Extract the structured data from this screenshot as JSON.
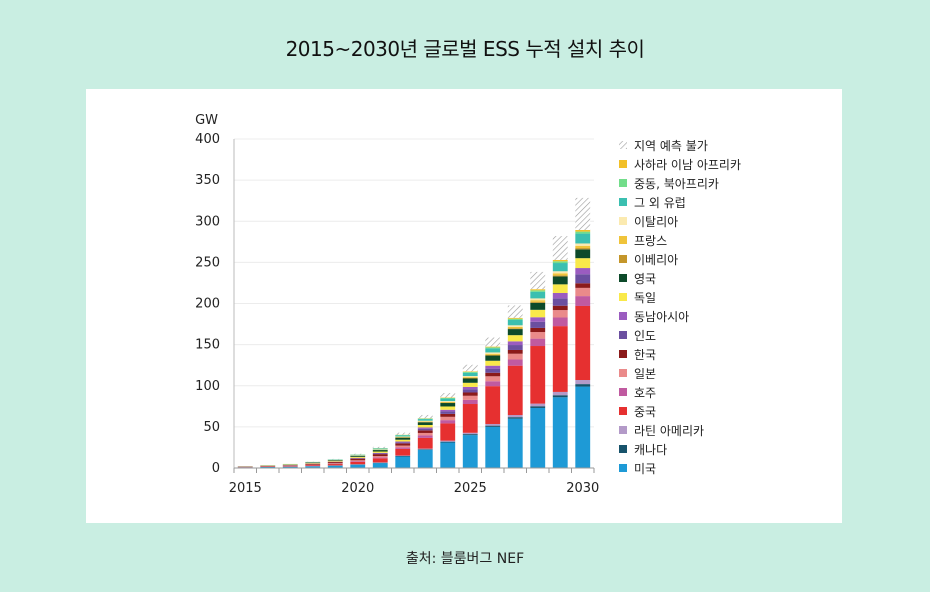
{
  "title": "2015~2030년 글로벌 ESS 누적 설치 추이",
  "source": "출처: 블룸버그 NEF",
  "chart_data": {
    "type": "bar",
    "stacked": true,
    "ylabel": "GW",
    "xlabel": "",
    "ylim": [
      0,
      400
    ],
    "yticks": [
      "0",
      "50",
      "100",
      "150",
      "200",
      "250",
      "300",
      "350",
      "400"
    ],
    "xtick_labels": [
      "2015",
      "2020",
      "2025",
      "2030"
    ],
    "grid": true,
    "legend_position": "right",
    "categories": [
      "2015",
      "2016",
      "2017",
      "2018",
      "2019",
      "2020",
      "2021",
      "2022",
      "2023",
      "2024",
      "2025",
      "2026",
      "2027",
      "2028",
      "2029",
      "2030"
    ],
    "series": [
      {
        "name": "미국",
        "color": "#1e9ad6",
        "hatched": false,
        "values": [
          0.8,
          1.2,
          1.5,
          2,
          2.8,
          4,
          6,
          14,
          22,
          31,
          40,
          50,
          60,
          73,
          86,
          99
        ]
      },
      {
        "name": "캐나다",
        "color": "#17536b",
        "hatched": false,
        "values": [
          0.1,
          0.1,
          0.1,
          0.2,
          0.2,
          0.3,
          0.4,
          0.6,
          0.8,
          1,
          1.2,
          1.5,
          1.8,
          2.1,
          2.5,
          3
        ]
      },
      {
        "name": "라틴 아메리카",
        "color": "#b39ac8",
        "hatched": false,
        "values": [
          0.1,
          0.1,
          0.1,
          0.2,
          0.2,
          0.3,
          0.4,
          0.6,
          0.8,
          1.2,
          1.6,
          2,
          2.6,
          3.2,
          4,
          5
        ]
      },
      {
        "name": "중국",
        "color": "#e63030",
        "hatched": false,
        "values": [
          0.3,
          0.4,
          0.6,
          1,
          1.6,
          3,
          5,
          8,
          13,
          21,
          35,
          46,
          60,
          70,
          80,
          90
        ]
      },
      {
        "name": "호주",
        "color": "#c05aa0",
        "hatched": false,
        "values": [
          0.1,
          0.1,
          0.2,
          0.3,
          0.4,
          0.8,
          1.2,
          2,
          3,
          4,
          5,
          6,
          7.5,
          9,
          10.5,
          12
        ]
      },
      {
        "name": "일본",
        "color": "#ea8a8a",
        "hatched": false,
        "values": [
          0.1,
          0.2,
          0.3,
          0.4,
          0.6,
          1,
          1.5,
          2,
          3,
          4,
          5,
          6,
          7,
          8,
          9,
          10
        ]
      },
      {
        "name": "한국",
        "color": "#8b1a1a",
        "hatched": false,
        "values": [
          0.2,
          0.4,
          0.6,
          1,
          1.4,
          2,
          2.4,
          2.8,
          3.2,
          3.6,
          4,
          4.3,
          4.6,
          5,
          5.3,
          5.6
        ]
      },
      {
        "name": "인도",
        "color": "#6b4fa0",
        "hatched": false,
        "values": [
          0.05,
          0.1,
          0.1,
          0.2,
          0.3,
          0.5,
          0.8,
          1.2,
          2,
          3,
          4,
          5,
          6,
          7.5,
          9,
          11
        ]
      },
      {
        "name": "동남아시아",
        "color": "#9b5cc0",
        "hatched": false,
        "values": [
          0.05,
          0.1,
          0.1,
          0.2,
          0.3,
          0.5,
          0.7,
          1,
          1.5,
          2,
          2.8,
          3.6,
          4.5,
          5.5,
          6.5,
          7.5
        ]
      },
      {
        "name": "독일",
        "color": "#f9e94a",
        "hatched": false,
        "values": [
          0.2,
          0.3,
          0.5,
          0.7,
          0.9,
          1.2,
          1.6,
          2.2,
          3,
          4,
          5,
          6,
          7.5,
          9,
          10.5,
          12
        ]
      },
      {
        "name": "영국",
        "color": "#0d4a2a",
        "hatched": false,
        "values": [
          0.1,
          0.2,
          0.3,
          0.5,
          0.8,
          1.2,
          1.8,
          2.5,
          3.3,
          4.2,
          5.2,
          6.3,
          7.4,
          8.5,
          9.6,
          10.7
        ]
      },
      {
        "name": "이베리아",
        "color": "#c4962a",
        "hatched": false,
        "values": [
          0.02,
          0.03,
          0.05,
          0.08,
          0.1,
          0.15,
          0.2,
          0.3,
          0.4,
          0.5,
          0.6,
          0.8,
          1,
          1.2,
          1.4,
          1.6
        ]
      },
      {
        "name": "프랑스",
        "color": "#f0c43a",
        "hatched": false,
        "values": [
          0.03,
          0.05,
          0.08,
          0.1,
          0.15,
          0.2,
          0.3,
          0.5,
          0.7,
          0.9,
          1.1,
          1.4,
          1.7,
          2,
          2.4,
          2.8
        ]
      },
      {
        "name": "이탈리아",
        "color": "#fbeab0",
        "hatched": false,
        "values": [
          0.05,
          0.08,
          0.1,
          0.15,
          0.2,
          0.3,
          0.4,
          0.6,
          0.8,
          1,
          1.3,
          1.6,
          1.9,
          2.2,
          2.5,
          2.8
        ]
      },
      {
        "name": "그 외 유럽",
        "color": "#3bbfb0",
        "hatched": false,
        "values": [
          0.1,
          0.15,
          0.2,
          0.3,
          0.5,
          0.7,
          1,
          1.5,
          2,
          3,
          4,
          5,
          6.5,
          8,
          10,
          12
        ]
      },
      {
        "name": "중동, 북아프리카",
        "color": "#72dd8a",
        "hatched": false,
        "values": [
          0.02,
          0.03,
          0.05,
          0.08,
          0.1,
          0.2,
          0.3,
          0.4,
          0.6,
          0.8,
          1,
          1.2,
          1.5,
          1.8,
          2.1,
          2.4
        ]
      },
      {
        "name": "사하라 이남 아프리카",
        "color": "#f2c028",
        "hatched": false,
        "values": [
          0.02,
          0.03,
          0.05,
          0.08,
          0.1,
          0.15,
          0.2,
          0.3,
          0.4,
          0.5,
          0.7,
          0.9,
          1.1,
          1.4,
          1.7,
          2
        ]
      },
      {
        "name": "지역 예측 불가",
        "color": "#9a9a9a",
        "hatched": true,
        "values": [
          0,
          0,
          0,
          0.2,
          0.4,
          0.8,
          1.5,
          2.5,
          4,
          5.5,
          8,
          11,
          15,
          21,
          29,
          39
        ]
      }
    ]
  }
}
